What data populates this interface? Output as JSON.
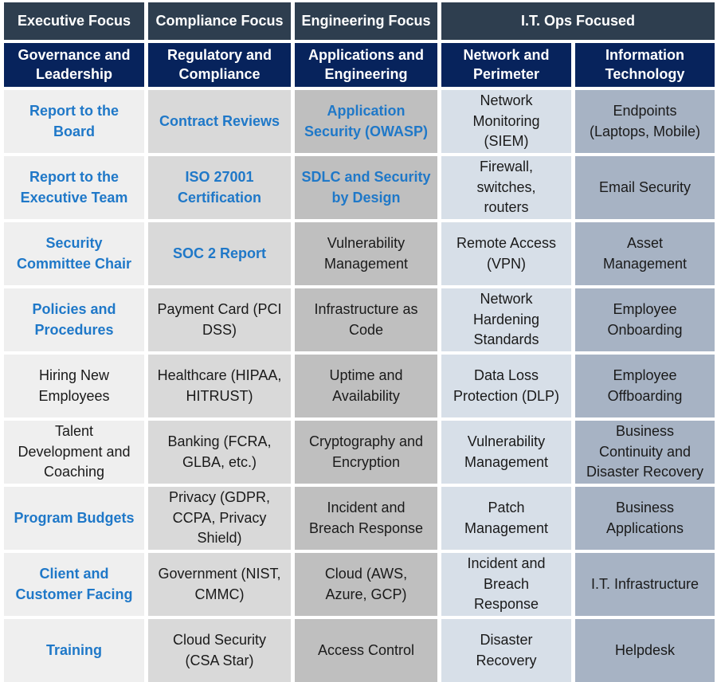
{
  "focus_headers": [
    "Executive Focus",
    "Compliance Focus",
    "Engineering Focus",
    "I.T. Ops Focused"
  ],
  "columns": [
    "Governance and\nLeadership",
    "Regulatory and\nCompliance",
    "Applications and\nEngineering",
    "Network and\nPerimeter",
    "Information\nTechnology"
  ],
  "rows": [
    [
      "Report to the\nBoard",
      "Contract Reviews",
      "Application\nSecurity (OWASP)",
      "Network\nMonitoring\n(SIEM)",
      "Endpoints\n(Laptops, Mobile)"
    ],
    [
      "Report to the\nExecutive Team",
      "ISO 27001\nCertification",
      "SDLC and Security\nby Design",
      "Firewall,\nswitches,\nrouters",
      "Email Security"
    ],
    [
      "Security\nCommittee Chair",
      "SOC 2 Report",
      "Vulnerability\nManagement",
      "Remote Access\n(VPN)",
      "Asset\nManagement"
    ],
    [
      "Policies and\nProcedures",
      "Payment Card (PCI\nDSS)",
      "Infrastructure as\nCode",
      "Network\nHardening\nStandards",
      "Employee\nOnboarding"
    ],
    [
      "Hiring New\nEmployees",
      "Healthcare (HIPAA,\nHITRUST)",
      "Uptime and\nAvailability",
      "Data Loss\nProtection (DLP)",
      "Employee\nOffboarding"
    ],
    [
      "Talent\nDevelopment and\nCoaching",
      "Banking (FCRA,\nGLBA, etc.)",
      "Cryptography and\nEncryption",
      "Vulnerability\nManagement",
      "Business\nContinuity and\nDisaster Recovery"
    ],
    [
      "Program Budgets",
      "Privacy (GDPR,\nCCPA, Privacy\nShield)",
      "Incident and\nBreach Response",
      "Patch\nManagement",
      "Business\nApplications"
    ],
    [
      "Client and\nCustomer Facing",
      "Government (NIST,\nCMMC)",
      "Cloud (AWS,\nAzure, GCP)",
      "Incident and\nBreach\nResponse",
      "I.T. Infrastructure"
    ],
    [
      "Training",
      "Cloud Security\n(CSA Star)",
      "Access Control",
      "Disaster\nRecovery",
      "Helpdesk"
    ]
  ],
  "colors": {
    "focus_header_bg": "#2e3e4f",
    "column_header_bg": "#07235c",
    "highlight_text": "#1f78c8",
    "column_fills": [
      "#efefef",
      "#d9d9d9",
      "#bfbfbf",
      "#d7dfe8",
      "#a7b3c4"
    ]
  }
}
